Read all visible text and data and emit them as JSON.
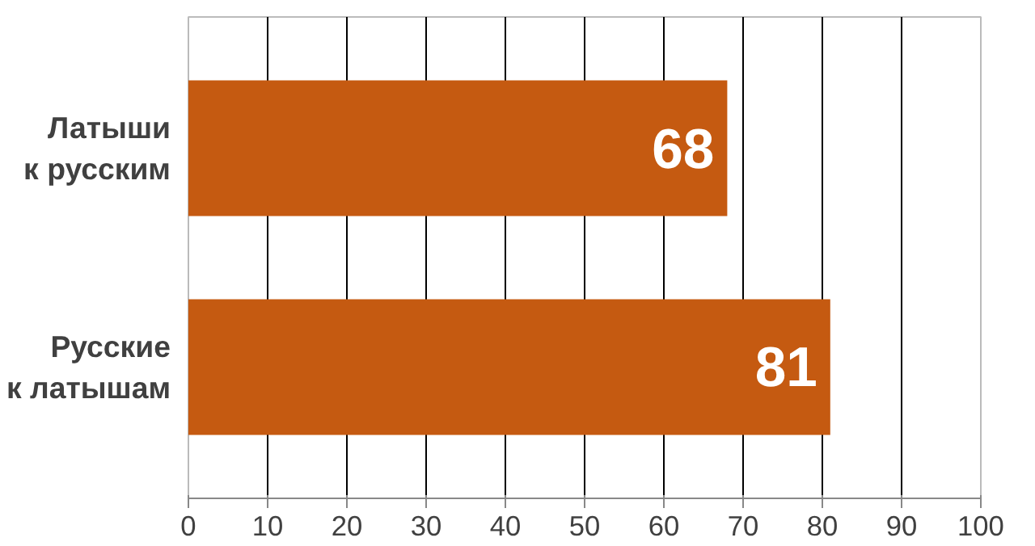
{
  "chart_data": {
    "type": "bar",
    "orientation": "horizontal",
    "categories": [
      "Латыши\nк русским",
      "Русские\nк латышам"
    ],
    "values": [
      68,
      81
    ],
    "color": "#c55a11",
    "xlim": [
      0,
      100
    ],
    "xticks": [
      0,
      10,
      20,
      30,
      40,
      50,
      60,
      70,
      80,
      90,
      100
    ],
    "grid": "x",
    "data_labels": true
  }
}
